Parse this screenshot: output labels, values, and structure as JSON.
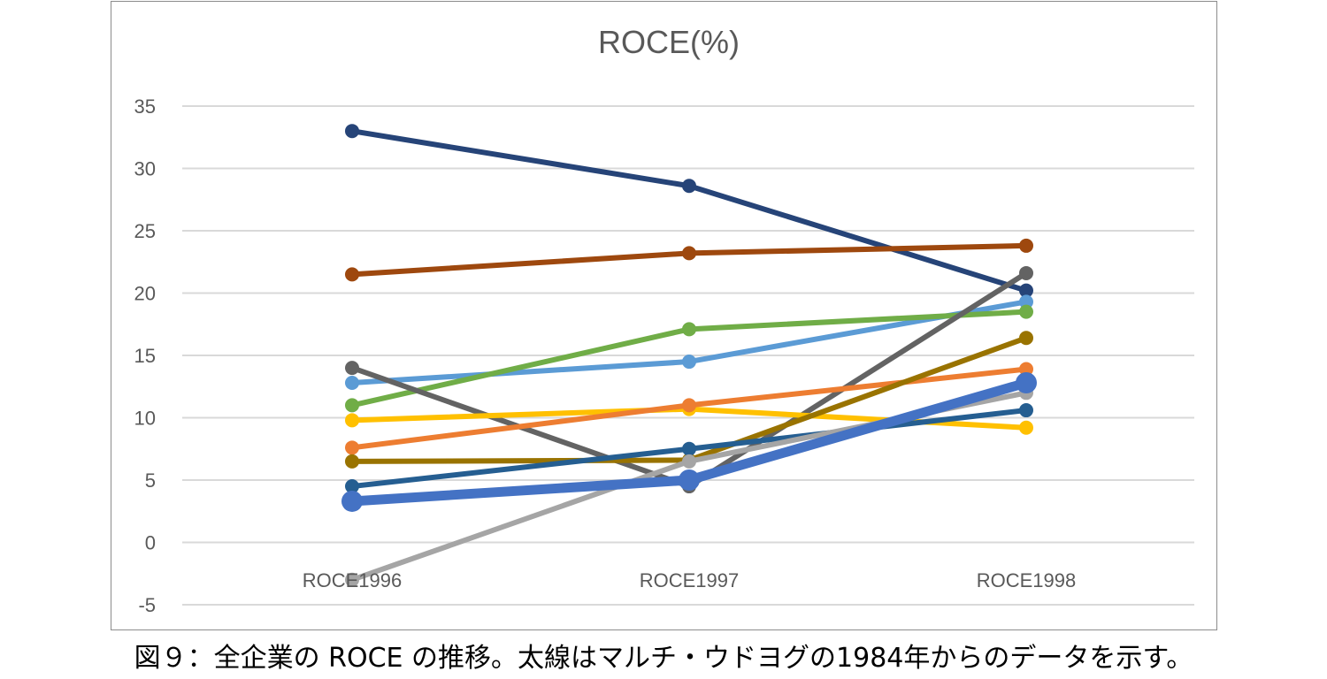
{
  "caption": "図９：全企業の ROCE の推移。太線はマルチ・ウドヨグの1984年からのデータを示す。",
  "chart_data": {
    "type": "line",
    "title": "ROCE(%)",
    "xlabel": "",
    "ylabel": "",
    "categories": [
      "ROCE1996",
      "ROCE1997",
      "ROCE1998"
    ],
    "ylim": [
      -5,
      35
    ],
    "yticks": [
      35,
      30,
      25,
      20,
      15,
      10,
      5,
      0,
      -5
    ],
    "grid": true,
    "legend": "none",
    "series": [
      {
        "values": [
          33.0,
          28.6,
          20.2
        ],
        "color": "#264478",
        "thick": false
      },
      {
        "values": [
          21.5,
          23.2,
          23.8
        ],
        "color": "#9e480e",
        "thick": false
      },
      {
        "values": [
          12.8,
          14.5,
          19.3
        ],
        "color": "#5b9bd5",
        "thick": false
      },
      {
        "values": [
          11.0,
          17.1,
          18.5
        ],
        "color": "#70ad47",
        "thick": false
      },
      {
        "values": [
          14.0,
          4.5,
          21.6
        ],
        "color": "#636363",
        "thick": false
      },
      {
        "values": [
          9.8,
          10.7,
          9.2
        ],
        "color": "#ffc000",
        "thick": false
      },
      {
        "values": [
          7.6,
          11.0,
          13.9
        ],
        "color": "#ed7d31",
        "thick": false
      },
      {
        "values": [
          6.5,
          6.6,
          16.4
        ],
        "color": "#997300",
        "thick": false
      },
      {
        "values": [
          4.5,
          7.5,
          10.6
        ],
        "color": "#255e91",
        "thick": false
      },
      {
        "values": [
          -3.0,
          6.5,
          12.0
        ],
        "color": "#a5a5a5",
        "thick": false
      },
      {
        "values": [
          3.3,
          5.0,
          12.8
        ],
        "color": "#4472c4",
        "thick": true
      }
    ]
  }
}
